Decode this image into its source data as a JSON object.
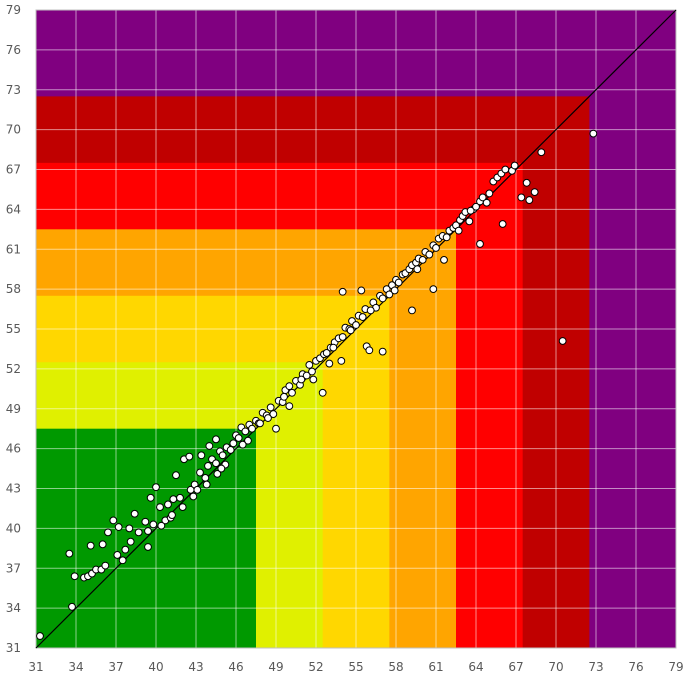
{
  "chart_data": {
    "type": "scatter",
    "title": "",
    "xlabel": "",
    "ylabel": "",
    "xlim": [
      31,
      79
    ],
    "ylim": [
      31,
      79
    ],
    "x_ticks": [
      31,
      34,
      37,
      40,
      43,
      46,
      49,
      52,
      55,
      58,
      61,
      64,
      67,
      70,
      73,
      76,
      79
    ],
    "y_ticks": [
      31,
      34,
      37,
      40,
      43,
      46,
      49,
      52,
      55,
      58,
      61,
      64,
      67,
      70,
      73,
      76,
      79
    ],
    "grid": true,
    "legend": "none",
    "reference_line": {
      "from": [
        31,
        31
      ],
      "to": [
        79,
        79
      ],
      "color": "#000000"
    },
    "bands": [
      {
        "upper": 79,
        "color": "#800080"
      },
      {
        "upper": 72.5,
        "color": "#c00000"
      },
      {
        "upper": 67.5,
        "color": "#ff0000"
      },
      {
        "upper": 62.5,
        "color": "#ffa500"
      },
      {
        "upper": 57.5,
        "color": "#ffd700"
      },
      {
        "upper": 52.5,
        "color": "#e0f000"
      },
      {
        "upper": 47.5,
        "color": "#009900"
      }
    ],
    "marker": {
      "fill": "#ffffff",
      "stroke": "#000000"
    },
    "points": [
      [
        31.3,
        31.9
      ],
      [
        33.7,
        34.1
      ],
      [
        33.5,
        38.1
      ],
      [
        33.9,
        36.4
      ],
      [
        34.6,
        36.3
      ],
      [
        34.9,
        36.4
      ],
      [
        35.2,
        36.6
      ],
      [
        35.5,
        36.9
      ],
      [
        35.9,
        36.9
      ],
      [
        36.2,
        37.2
      ],
      [
        35.1,
        38.7
      ],
      [
        36.0,
        38.8
      ],
      [
        36.4,
        39.7
      ],
      [
        36.8,
        40.6
      ],
      [
        37.2,
        40.1
      ],
      [
        37.1,
        38.0
      ],
      [
        37.5,
        37.6
      ],
      [
        37.7,
        38.4
      ],
      [
        38.1,
        39.0
      ],
      [
        38.0,
        40.0
      ],
      [
        38.4,
        41.1
      ],
      [
        38.7,
        39.7
      ],
      [
        39.2,
        40.5
      ],
      [
        39.4,
        39.8
      ],
      [
        39.4,
        38.6
      ],
      [
        39.6,
        42.3
      ],
      [
        40.0,
        43.1
      ],
      [
        40.3,
        41.6
      ],
      [
        40.7,
        40.6
      ],
      [
        40.9,
        41.8
      ],
      [
        41.1,
        40.8
      ],
      [
        41.3,
        42.2
      ],
      [
        41.5,
        44.0
      ],
      [
        41.8,
        42.3
      ],
      [
        42.1,
        45.2
      ],
      [
        42.5,
        45.4
      ],
      [
        42.6,
        42.9
      ],
      [
        42.9,
        43.3
      ],
      [
        43.1,
        42.9
      ],
      [
        43.3,
        44.2
      ],
      [
        43.4,
        45.5
      ],
      [
        43.7,
        43.8
      ],
      [
        43.9,
        44.7
      ],
      [
        44.0,
        46.2
      ],
      [
        44.2,
        45.2
      ],
      [
        44.5,
        44.9
      ],
      [
        44.5,
        46.7
      ],
      [
        44.8,
        45.8
      ],
      [
        45.0,
        45.5
      ],
      [
        45.3,
        46.1
      ],
      [
        45.6,
        45.9
      ],
      [
        45.8,
        46.4
      ],
      [
        46.0,
        47.0
      ],
      [
        46.2,
        46.8
      ],
      [
        46.4,
        47.6
      ],
      [
        46.7,
        47.3
      ],
      [
        47.0,
        47.8
      ],
      [
        47.2,
        47.5
      ],
      [
        47.5,
        48.1
      ],
      [
        47.7,
        47.9
      ],
      [
        48.0,
        48.7
      ],
      [
        48.3,
        48.5
      ],
      [
        48.6,
        49.1
      ],
      [
        48.8,
        48.6
      ],
      [
        49.0,
        47.5
      ],
      [
        49.2,
        49.6
      ],
      [
        49.5,
        49.5
      ],
      [
        49.7,
        50.4
      ],
      [
        50.0,
        50.7
      ],
      [
        50.2,
        50.2
      ],
      [
        50.5,
        51.1
      ],
      [
        50.8,
        50.8
      ],
      [
        51.0,
        51.6
      ],
      [
        51.3,
        51.5
      ],
      [
        51.5,
        52.3
      ],
      [
        51.7,
        51.8
      ],
      [
        52.0,
        52.6
      ],
      [
        52.3,
        52.8
      ],
      [
        52.6,
        53.1
      ],
      [
        52.8,
        53.2
      ],
      [
        53.0,
        52.4
      ],
      [
        53.1,
        53.6
      ],
      [
        53.4,
        54.0
      ],
      [
        53.7,
        54.3
      ],
      [
        54.0,
        54.4
      ],
      [
        54.2,
        55.1
      ],
      [
        54.5,
        55.0
      ],
      [
        54.7,
        55.6
      ],
      [
        55.0,
        55.3
      ],
      [
        55.2,
        56.0
      ],
      [
        55.5,
        55.9
      ],
      [
        55.7,
        56.5
      ],
      [
        55.8,
        53.7
      ],
      [
        56.0,
        53.4
      ],
      [
        56.3,
        57.0
      ],
      [
        56.5,
        56.6
      ],
      [
        56.8,
        57.5
      ],
      [
        57.0,
        57.3
      ],
      [
        57.3,
        58.0
      ],
      [
        57.5,
        57.6
      ],
      [
        57.7,
        58.3
      ],
      [
        58.0,
        58.7
      ],
      [
        58.2,
        58.5
      ],
      [
        58.5,
        59.1
      ],
      [
        58.7,
        59.2
      ],
      [
        59.0,
        59.5
      ],
      [
        59.2,
        59.8
      ],
      [
        59.5,
        60.0
      ],
      [
        59.7,
        60.3
      ],
      [
        60.0,
        60.2
      ],
      [
        60.2,
        60.8
      ],
      [
        60.5,
        60.6
      ],
      [
        60.8,
        61.3
      ],
      [
        61.0,
        61.1
      ],
      [
        61.2,
        61.8
      ],
      [
        61.5,
        62.0
      ],
      [
        61.8,
        61.9
      ],
      [
        62.0,
        62.4
      ],
      [
        62.3,
        62.6
      ],
      [
        62.5,
        62.8
      ],
      [
        62.8,
        63.2
      ],
      [
        63.0,
        63.5
      ],
      [
        63.2,
        63.8
      ],
      [
        63.5,
        63.1
      ],
      [
        63.8,
        64.0
      ],
      [
        64.0,
        64.2
      ],
      [
        64.3,
        64.6
      ],
      [
        64.5,
        64.9
      ],
      [
        64.8,
        64.5
      ],
      [
        65.0,
        65.2
      ],
      [
        65.3,
        66.1
      ],
      [
        65.6,
        66.4
      ],
      [
        65.9,
        66.7
      ],
      [
        66.2,
        67.0
      ],
      [
        66.7,
        66.9
      ],
      [
        66.9,
        67.3
      ],
      [
        68.9,
        68.3
      ],
      [
        67.8,
        66.0
      ],
      [
        68.4,
        65.3
      ],
      [
        68.0,
        64.7
      ],
      [
        67.4,
        64.9
      ],
      [
        66.0,
        62.9
      ],
      [
        64.3,
        61.4
      ],
      [
        61.6,
        60.2
      ],
      [
        60.8,
        58.0
      ],
      [
        59.2,
        56.4
      ],
      [
        57.0,
        53.3
      ],
      [
        55.4,
        57.9
      ],
      [
        53.9,
        52.6
      ],
      [
        52.5,
        50.2
      ],
      [
        50.0,
        49.2
      ],
      [
        54.0,
        57.8
      ],
      [
        70.5,
        54.1
      ],
      [
        72.8,
        69.7
      ],
      [
        48.4,
        48.3
      ],
      [
        47.8,
        47.9
      ],
      [
        46.9,
        46.6
      ],
      [
        45.2,
        44.8
      ],
      [
        44.6,
        44.1
      ],
      [
        43.8,
        43.3
      ],
      [
        42.8,
        42.4
      ],
      [
        42.0,
        41.6
      ],
      [
        41.2,
        41.0
      ],
      [
        40.4,
        40.2
      ],
      [
        39.8,
        40.3
      ],
      [
        49.6,
        49.9
      ],
      [
        50.9,
        51.2
      ],
      [
        51.8,
        51.2
      ],
      [
        53.3,
        53.6
      ],
      [
        54.6,
        54.9
      ],
      [
        56.1,
        56.4
      ],
      [
        57.9,
        57.9
      ],
      [
        59.6,
        59.5
      ],
      [
        62.7,
        62.4
      ],
      [
        63.6,
        63.9
      ],
      [
        46.5,
        46.3
      ],
      [
        44.9,
        44.5
      ]
    ]
  }
}
